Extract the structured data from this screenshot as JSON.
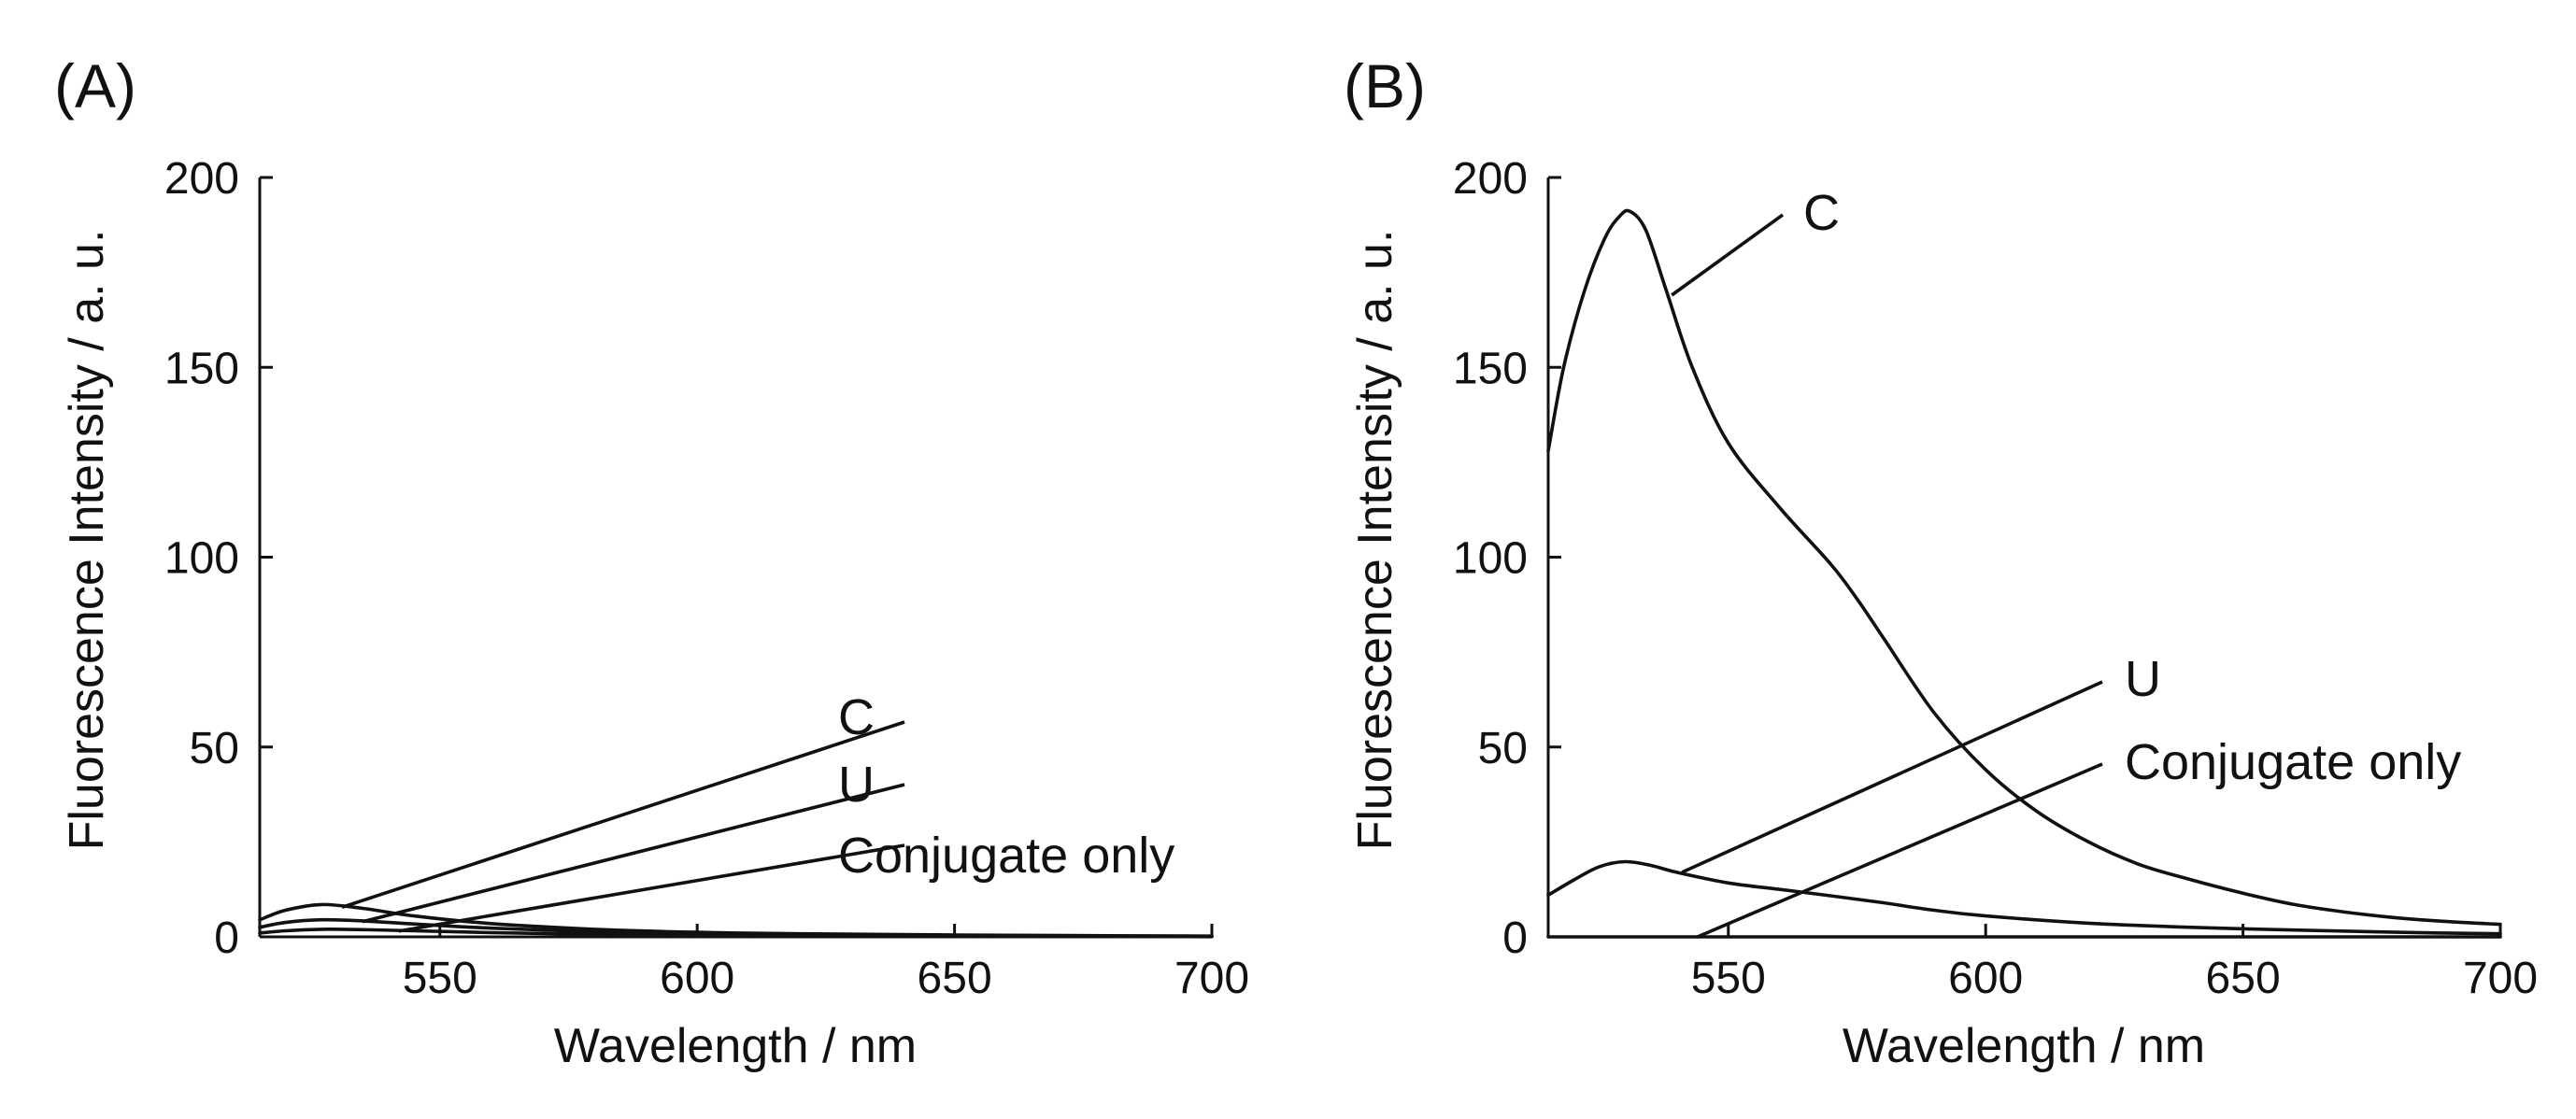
{
  "chart_data": [
    {
      "panel": "(A)",
      "type": "line",
      "xlabel": "Wavelength / nm",
      "ylabel": "Fluorescence Intensity / a. u.",
      "xlim": [
        515,
        700
      ],
      "ylim": [
        0,
        200
      ],
      "xticks": [
        550,
        600,
        650,
        700
      ],
      "yticks": [
        0,
        50,
        100,
        150,
        200
      ],
      "series": [
        {
          "name": "C",
          "x": [
            515,
            520,
            527,
            535,
            545,
            560,
            580,
            600,
            620,
            650,
            680,
            700
          ],
          "y": [
            4.5,
            7,
            8.5,
            7.5,
            5.5,
            3.5,
            2,
            1.2,
            0.8,
            0.5,
            0.3,
            0.2
          ],
          "label_point": [
            531,
            7.8
          ]
        },
        {
          "name": "U",
          "x": [
            515,
            520,
            527,
            535,
            545,
            560,
            580,
            600,
            620,
            650,
            680,
            700
          ],
          "y": [
            2.5,
            3.8,
            4.5,
            4.2,
            3.4,
            2.3,
            1.4,
            0.9,
            0.6,
            0.4,
            0.2,
            0.1
          ],
          "label_point": [
            535,
            4
          ]
        },
        {
          "name": "Conjugate only",
          "x": [
            515,
            520,
            527,
            535,
            545,
            560,
            580,
            600,
            620,
            650,
            680,
            700
          ],
          "y": [
            1,
            1.6,
            2,
            1.9,
            1.6,
            1.1,
            0.7,
            0.4,
            0.3,
            0.2,
            0.1,
            0.05
          ],
          "label_point": [
            542,
            1.5
          ]
        }
      ]
    },
    {
      "panel": "(B)",
      "type": "line",
      "xlabel": "Wavelength / nm",
      "ylabel": "Fluorescence Intensity / a. u.",
      "xlim": [
        515,
        700
      ],
      "ylim": [
        0,
        200
      ],
      "xticks": [
        550,
        600,
        650,
        700
      ],
      "yticks": [
        0,
        50,
        100,
        150,
        200
      ],
      "series": [
        {
          "name": "C",
          "x": [
            515,
            518,
            522,
            526,
            529,
            531,
            534,
            538,
            543,
            550,
            560,
            570,
            575,
            580,
            590,
            600,
            610,
            620,
            630,
            640,
            650,
            660,
            670,
            680,
            690,
            700
          ],
          "y": [
            128,
            150,
            170,
            184,
            190,
            191,
            186,
            170,
            150,
            130,
            113,
            98,
            89,
            79,
            59,
            44,
            33,
            25,
            19,
            15,
            11.5,
            8.5,
            6.5,
            5,
            4,
            3.3
          ],
          "label_point": [
            539,
            169
          ]
        },
        {
          "name": "U",
          "x": [
            515,
            520,
            525,
            530,
            535,
            540,
            550,
            560,
            570,
            580,
            590,
            600,
            620,
            640,
            660,
            680,
            700
          ],
          "y": [
            11,
            15,
            18.5,
            19.8,
            18.8,
            17,
            14.2,
            12.5,
            10.8,
            9,
            7,
            5.5,
            3.6,
            2.5,
            1.8,
            1.2,
            0.8
          ],
          "label_point": [
            541,
            17
          ]
        },
        {
          "name": "Conjugate only",
          "x": [
            515,
            550,
            600,
            650,
            700
          ],
          "y": [
            0,
            0,
            0,
            0,
            0
          ],
          "label_point": [
            544,
            0
          ]
        }
      ]
    }
  ]
}
